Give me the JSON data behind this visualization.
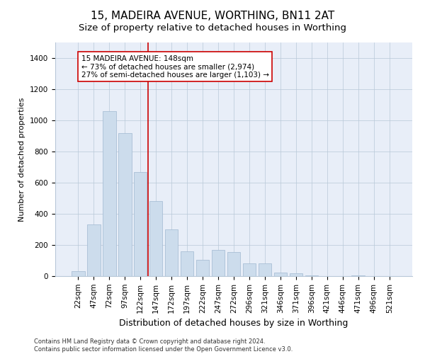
{
  "title": "15, MADEIRA AVENUE, WORTHING, BN11 2AT",
  "subtitle": "Size of property relative to detached houses in Worthing",
  "xlabel": "Distribution of detached houses by size in Worthing",
  "ylabel": "Number of detached properties",
  "bar_labels": [
    "22sqm",
    "47sqm",
    "72sqm",
    "97sqm",
    "122sqm",
    "147sqm",
    "172sqm",
    "197sqm",
    "222sqm",
    "247sqm",
    "272sqm",
    "296sqm",
    "321sqm",
    "346sqm",
    "371sqm",
    "396sqm",
    "421sqm",
    "446sqm",
    "471sqm",
    "496sqm",
    "521sqm"
  ],
  "bar_values": [
    30,
    330,
    1060,
    920,
    670,
    480,
    300,
    160,
    105,
    170,
    155,
    80,
    80,
    25,
    20,
    5,
    0,
    0,
    5,
    0,
    0
  ],
  "bar_color": "#ccdcec",
  "bar_edge_color": "#a0b8d0",
  "vline_color": "#cc0000",
  "annotation_text": "15 MADEIRA AVENUE: 148sqm\n← 73% of detached houses are smaller (2,974)\n27% of semi-detached houses are larger (1,103) →",
  "annotation_box_color": "#ffffff",
  "annotation_border_color": "#cc0000",
  "ylim": [
    0,
    1500
  ],
  "yticks": [
    0,
    200,
    400,
    600,
    800,
    1000,
    1200,
    1400
  ],
  "plot_background_color": "#e8eef8",
  "footer_text": "Contains HM Land Registry data © Crown copyright and database right 2024.\nContains public sector information licensed under the Open Government Licence v3.0.",
  "title_fontsize": 11,
  "subtitle_fontsize": 9.5,
  "ylabel_fontsize": 8,
  "xlabel_fontsize": 9,
  "tick_fontsize": 7.5,
  "annot_fontsize": 7.5,
  "footer_fontsize": 6
}
